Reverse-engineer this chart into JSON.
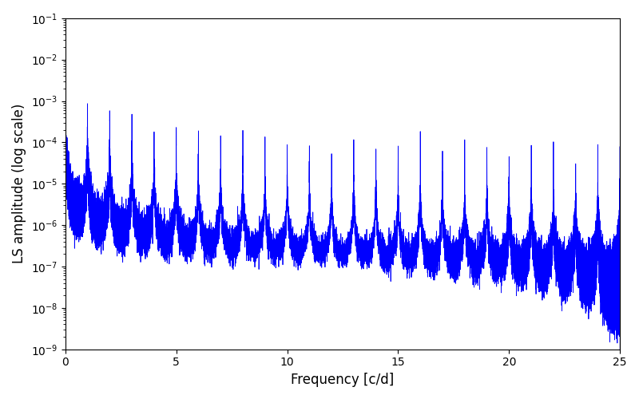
{
  "xlabel": "Frequency [c/d]",
  "ylabel": "LS amplitude (log scale)",
  "xlim": [
    0,
    25
  ],
  "ylim_log": [
    1e-09,
    0.1
  ],
  "line_color": "#0000ff",
  "line_width": 0.6,
  "freq_max": 25.0,
  "n_points": 15000,
  "background_color": "#ffffff",
  "fig_width": 8.0,
  "fig_height": 5.0,
  "dpi": 100
}
